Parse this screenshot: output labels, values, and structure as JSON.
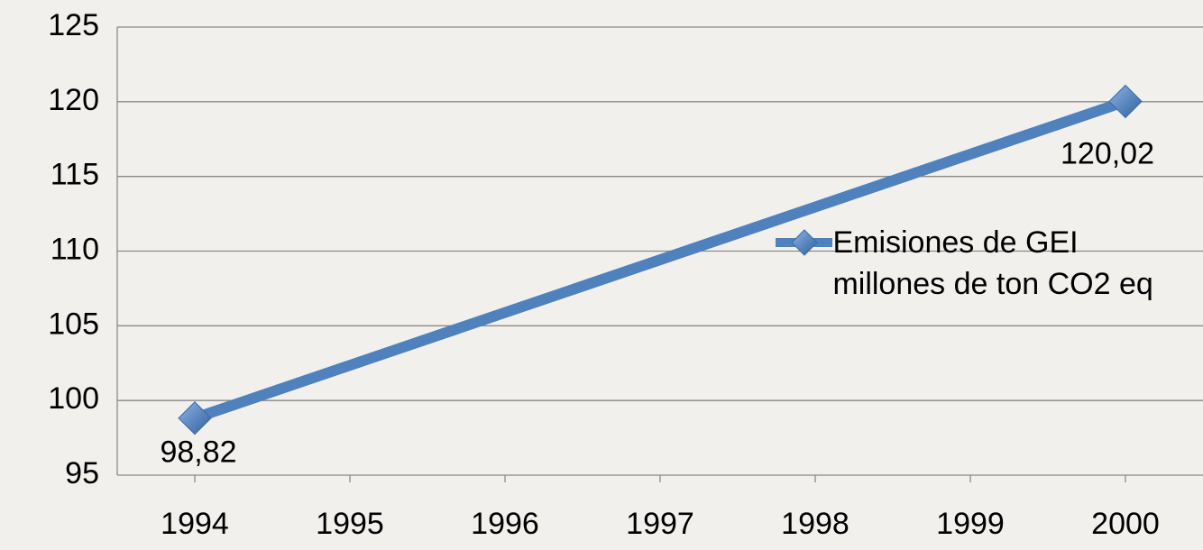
{
  "chart_data": {
    "type": "line",
    "x": [
      1994,
      2000
    ],
    "xlim": [
      1993.5,
      2000.5
    ],
    "xticks": [
      1994,
      1995,
      1996,
      1997,
      1998,
      1999,
      2000
    ],
    "ylim": [
      95,
      125
    ],
    "yticks": [
      95,
      100,
      105,
      110,
      115,
      120,
      125
    ],
    "grid": true,
    "legend": "right",
    "series": [
      {
        "name": "Emisiones de GEI millones de ton CO2 eq",
        "color": "#4f81bd",
        "values": [
          98.82,
          120.02
        ],
        "value_labels": [
          "98,82",
          "120,02"
        ]
      }
    ]
  }
}
